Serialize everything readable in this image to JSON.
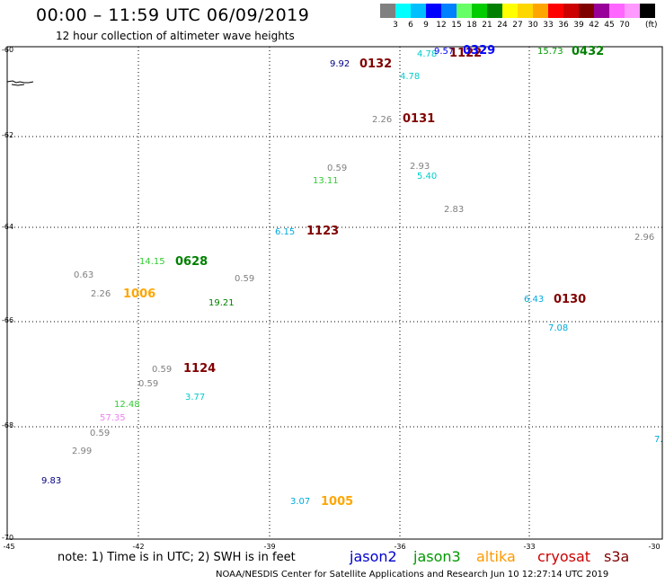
{
  "header": {
    "title": "00:00 – 11:59 UTC 06/09/2019",
    "subtitle": "12 hour collection of altimeter wave heights"
  },
  "scale": {
    "colors": [
      "#808080",
      "#00ffff",
      "#00bfff",
      "#0000ff",
      "#0080ff",
      "#66ff66",
      "#00cc00",
      "#008000",
      "#ffff00",
      "#ffd700",
      "#ffa500",
      "#ff0000",
      "#cc0000",
      "#800000",
      "#990099",
      "#ff66ff",
      "#ff99ff",
      "#000000"
    ],
    "labels": [
      "3",
      "6",
      "9",
      "12",
      "15",
      "18",
      "21",
      "24",
      "27",
      "30",
      "33",
      "36",
      "39",
      "42",
      "45",
      "70"
    ],
    "unit": "(ft)"
  },
  "axes": {
    "lat_labels": [
      "-60",
      "-62",
      "-64",
      "-66",
      "-68",
      "-70"
    ],
    "lon_labels": [
      "-45",
      "-42",
      "-39",
      "-36",
      "-33",
      "-30"
    ]
  },
  "swh_values": [
    {
      "v": "9.92",
      "c": "#000080"
    },
    {
      "v": "4.78",
      "c": "#00cccc"
    },
    {
      "v": "9.57",
      "c": "#0000ff"
    },
    {
      "v": "15.73",
      "c": "#009900"
    },
    {
      "v": "4.78",
      "c": "#00cccc"
    },
    {
      "v": "2.26",
      "c": "#808080"
    },
    {
      "v": "0.59",
      "c": "#808080"
    },
    {
      "v": "2.93",
      "c": "#808080"
    },
    {
      "v": "13.11",
      "c": "#33cc33"
    },
    {
      "v": "5.40",
      "c": "#00cccc"
    },
    {
      "v": "2.83",
      "c": "#808080"
    },
    {
      "v": "6.15",
      "c": "#00aadd"
    },
    {
      "v": "2.96",
      "c": "#808080"
    },
    {
      "v": "14.15",
      "c": "#33cc33"
    },
    {
      "v": "0.63",
      "c": "#808080"
    },
    {
      "v": "0.59",
      "c": "#808080"
    },
    {
      "v": "2.26",
      "c": "#808080"
    },
    {
      "v": "19.21",
      "c": "#008000"
    },
    {
      "v": "6.43",
      "c": "#00aadd"
    },
    {
      "v": "7.08",
      "c": "#00aadd"
    },
    {
      "v": "0.59",
      "c": "#808080"
    },
    {
      "v": "0.59",
      "c": "#808080"
    },
    {
      "v": "3.77",
      "c": "#00cccc"
    },
    {
      "v": "12.48",
      "c": "#33cc33"
    },
    {
      "v": "57.35",
      "c": "#ee82ee"
    },
    {
      "v": "0.59",
      "c": "#808080"
    },
    {
      "v": "2.99",
      "c": "#808080"
    },
    {
      "v": "7.",
      "c": "#00aadd"
    },
    {
      "v": "9.83",
      "c": "#000080"
    },
    {
      "v": "3.07",
      "c": "#00aadd"
    }
  ],
  "time_labels": [
    {
      "v": "0132",
      "c": "#800000"
    },
    {
      "v": "1122",
      "c": "#800000"
    },
    {
      "v": "0329",
      "c": "#0000ff"
    },
    {
      "v": "0432",
      "c": "#008000"
    },
    {
      "v": "0131",
      "c": "#800000"
    },
    {
      "v": "1123",
      "c": "#800000"
    },
    {
      "v": "0628",
      "c": "#008000"
    },
    {
      "v": "1006",
      "c": "#ffa500"
    },
    {
      "v": "0130",
      "c": "#800000"
    },
    {
      "v": "1124",
      "c": "#800000"
    },
    {
      "v": "1005",
      "c": "#ffa500"
    }
  ],
  "footer": {
    "note": "note: 1) Time is in UTC; 2) SWH is in feet",
    "satellites": [
      {
        "name": "jason2",
        "color": "#0000cc"
      },
      {
        "name": "jason3",
        "color": "#009900"
      },
      {
        "name": "altika",
        "color": "#ff9900"
      },
      {
        "name": "cryosat",
        "color": "#cc0000"
      },
      {
        "name": "s3a",
        "color": "#800000"
      }
    ],
    "credit": "NOAA/NESDIS Center for Satellite Applications and Research   Jun 10 12:27:14 UTC 2019"
  }
}
